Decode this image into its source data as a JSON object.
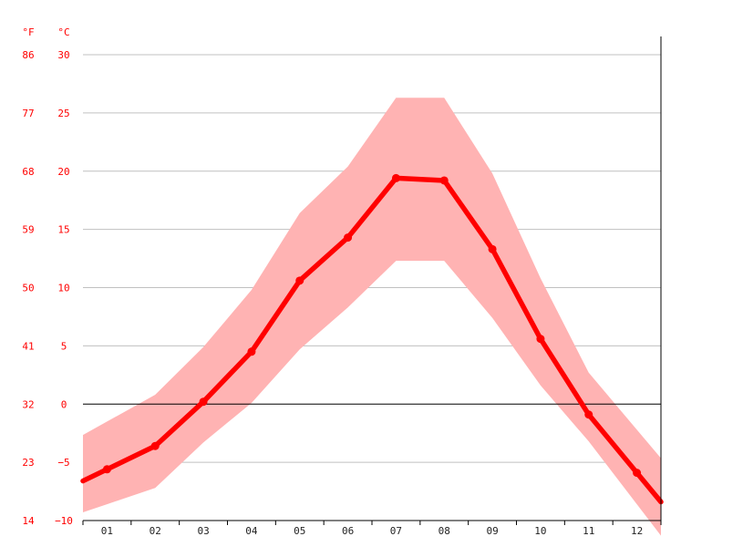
{
  "chart_data": {
    "type": "line",
    "title": "",
    "xlabel": "",
    "ylabel": "",
    "units": {
      "fahrenheit": "°F",
      "celsius": "°C"
    },
    "categories": [
      "01",
      "02",
      "03",
      "04",
      "05",
      "06",
      "07",
      "08",
      "09",
      "10",
      "11",
      "12"
    ],
    "y_ticks_celsius": [
      "30",
      "25",
      "20",
      "15",
      "10",
      "5",
      "0",
      "−5",
      "−10"
    ],
    "y_ticks_fahrenheit": [
      "86",
      "77",
      "68",
      "59",
      "50",
      "41",
      "32",
      "23",
      "14"
    ],
    "ylim": [
      -10,
      30
    ],
    "grid": true,
    "zero_line": true,
    "series": [
      {
        "values": [
          -5.6,
          -3.6,
          0.2,
          4.5,
          10.6,
          14.3,
          19.4,
          19.2,
          13.3,
          5.6,
          -0.9,
          -5.9
        ],
        "color": "#ff0000"
      }
    ],
    "range_band": {
      "color": "#ffb3b3",
      "upper": [
        -1.5,
        0.8,
        4.9,
        9.8,
        16.4,
        20.4,
        26.3,
        26.3,
        19.8,
        10.8,
        2.7,
        -2.2
      ],
      "lower": [
        -8.6,
        -7.2,
        -3.3,
        0.1,
        4.7,
        8.3,
        12.3,
        12.3,
        7.4,
        1.6,
        -3.2,
        -8.6
      ]
    },
    "colors": {
      "axis_label": "#ff0000",
      "line": "#ff0000",
      "band": "#ffb3b3",
      "grid": "#c0c0c0",
      "zero": "#000000"
    }
  }
}
